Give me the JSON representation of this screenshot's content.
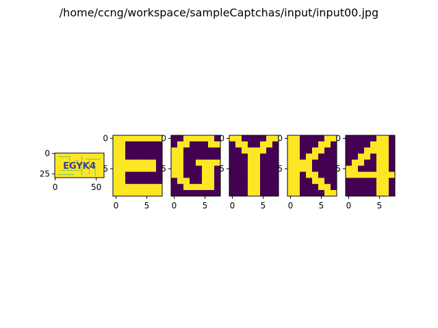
{
  "figure": {
    "title": "/home/ccng/workspace/sampleCaptchas/input/input00.jpg"
  },
  "colors": {
    "on": "#fde725",
    "off": "#440154",
    "mid": "#21918c",
    "light": "#5ec962"
  },
  "chart_data": [
    {
      "type": "heatmap",
      "name": "captcha-image",
      "text": "EGYK4",
      "shape": [
        30,
        60
      ],
      "xticks": [
        "0",
        "50"
      ],
      "yticks": [
        "0",
        "25"
      ]
    },
    {
      "type": "heatmap",
      "name": "char-E",
      "shape": [
        10,
        8
      ],
      "xticks": [
        "0",
        "5"
      ],
      "yticks": [
        "0",
        "5"
      ],
      "values": [
        [
          1,
          1,
          1,
          1,
          1,
          1,
          1,
          1
        ],
        [
          1,
          1,
          0,
          0,
          0,
          0,
          0,
          0
        ],
        [
          1,
          1,
          0,
          0,
          0,
          0,
          0,
          0
        ],
        [
          1,
          1,
          0,
          0,
          0,
          0,
          0,
          0
        ],
        [
          1,
          1,
          1,
          1,
          1,
          1,
          1,
          0
        ],
        [
          1,
          1,
          1,
          1,
          1,
          1,
          1,
          0
        ],
        [
          1,
          1,
          0,
          0,
          0,
          0,
          0,
          0
        ],
        [
          1,
          1,
          0,
          0,
          0,
          0,
          0,
          0
        ],
        [
          1,
          1,
          1,
          1,
          1,
          1,
          1,
          1
        ],
        [
          1,
          1,
          1,
          1,
          1,
          1,
          1,
          1
        ]
      ]
    },
    {
      "type": "heatmap",
      "name": "char-G",
      "shape": [
        10,
        8
      ],
      "xticks": [
        "0",
        "5"
      ],
      "yticks": [
        "0",
        "5"
      ],
      "values": [
        [
          0,
          0,
          1,
          1,
          1,
          1,
          1,
          0
        ],
        [
          0,
          1,
          1,
          0,
          0,
          0,
          1,
          1
        ],
        [
          1,
          1,
          0,
          0,
          0,
          0,
          0,
          0
        ],
        [
          1,
          1,
          0,
          0,
          0,
          0,
          0,
          0
        ],
        [
          1,
          1,
          0,
          0,
          1,
          1,
          1,
          1
        ],
        [
          1,
          1,
          0,
          0,
          0,
          1,
          1,
          0
        ],
        [
          1,
          1,
          0,
          0,
          0,
          1,
          1,
          0
        ],
        [
          0,
          1,
          1,
          0,
          0,
          1,
          1,
          0
        ],
        [
          0,
          0,
          1,
          1,
          1,
          1,
          1,
          0
        ],
        [
          0,
          0,
          0,
          0,
          0,
          0,
          0,
          0
        ]
      ]
    },
    {
      "type": "heatmap",
      "name": "char-Y",
      "shape": [
        10,
        8
      ],
      "xticks": [
        "0",
        "5"
      ],
      "yticks": [
        "0",
        "5"
      ],
      "values": [
        [
          1,
          1,
          0,
          0,
          0,
          0,
          1,
          1
        ],
        [
          0,
          1,
          1,
          0,
          0,
          1,
          1,
          0
        ],
        [
          0,
          0,
          1,
          1,
          1,
          1,
          0,
          0
        ],
        [
          0,
          0,
          0,
          1,
          1,
          0,
          0,
          0
        ],
        [
          0,
          0,
          0,
          1,
          1,
          0,
          0,
          0
        ],
        [
          0,
          0,
          0,
          1,
          1,
          0,
          0,
          0
        ],
        [
          0,
          0,
          0,
          1,
          1,
          0,
          0,
          0
        ],
        [
          0,
          0,
          0,
          1,
          1,
          0,
          0,
          0
        ],
        [
          0,
          0,
          0,
          1,
          1,
          0,
          0,
          0
        ],
        [
          0,
          0,
          0,
          1,
          1,
          0,
          0,
          0
        ]
      ]
    },
    {
      "type": "heatmap",
      "name": "char-K",
      "shape": [
        10,
        8
      ],
      "xticks": [
        "0",
        "5"
      ],
      "yticks": [
        "0",
        "5"
      ],
      "values": [
        [
          1,
          1,
          0,
          0,
          0,
          0,
          1,
          1
        ],
        [
          1,
          1,
          0,
          0,
          0,
          1,
          1,
          0
        ],
        [
          1,
          1,
          0,
          0,
          1,
          1,
          0,
          0
        ],
        [
          1,
          1,
          0,
          1,
          1,
          0,
          0,
          0
        ],
        [
          1,
          1,
          1,
          1,
          0,
          0,
          0,
          0
        ],
        [
          1,
          1,
          1,
          1,
          0,
          0,
          0,
          0
        ],
        [
          1,
          1,
          0,
          1,
          1,
          0,
          0,
          0
        ],
        [
          1,
          1,
          0,
          0,
          1,
          1,
          0,
          0
        ],
        [
          1,
          1,
          0,
          0,
          0,
          1,
          1,
          0
        ],
        [
          1,
          1,
          0,
          0,
          0,
          0,
          1,
          1
        ]
      ]
    },
    {
      "type": "heatmap",
      "name": "char-4",
      "shape": [
        10,
        8
      ],
      "xticks": [
        "0",
        "5"
      ],
      "yticks": [
        "0",
        "5"
      ],
      "values": [
        [
          0,
          0,
          0,
          0,
          0,
          1,
          1,
          0
        ],
        [
          0,
          0,
          0,
          0,
          1,
          1,
          1,
          0
        ],
        [
          0,
          0,
          0,
          1,
          1,
          1,
          1,
          0
        ],
        [
          0,
          0,
          1,
          1,
          0,
          1,
          1,
          0
        ],
        [
          0,
          1,
          1,
          0,
          0,
          1,
          1,
          0
        ],
        [
          1,
          1,
          0,
          0,
          0,
          1,
          1,
          0
        ],
        [
          1,
          1,
          1,
          1,
          1,
          1,
          1,
          1
        ],
        [
          0,
          0,
          0,
          0,
          0,
          1,
          1,
          0
        ],
        [
          0,
          0,
          0,
          0,
          0,
          1,
          1,
          0
        ],
        [
          0,
          0,
          0,
          0,
          0,
          1,
          1,
          0
        ]
      ]
    }
  ]
}
